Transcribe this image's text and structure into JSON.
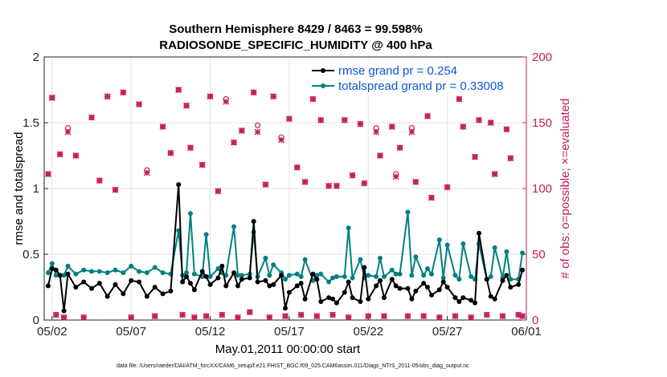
{
  "chart_data": {
    "type": "line",
    "title": "Southern Hemisphere 8429 / 8463 = 99.598%",
    "subtitle": "RADIOSONDE_SPECIFIC_HUMIDITY @ 400 hPa",
    "xlabel": "May.01,2011 00:00:00 start",
    "ylabel": "rmse and totalspread",
    "ylabel_right": "# of obs: o=possible; ×=evaluated",
    "footer": "data file: /Users/raeder/DAI/ATM_forcXX/CAM6_setup/f.e21.FHIST_BGC.f09_025.CAM6assim.011/Diags_NTrS_2011-05/obs_diag_output.nc",
    "xlim": [
      1.5,
      32.0
    ],
    "ylim": [
      0,
      2
    ],
    "ylim_right": [
      0,
      200
    ],
    "x_tick_values": [
      2,
      7,
      12,
      17,
      22,
      27,
      32
    ],
    "x_tick_labels": [
      "05/02",
      "05/07",
      "05/12",
      "05/17",
      "05/22",
      "05/27",
      "06/01"
    ],
    "y_ticks": [
      "0",
      "0.5",
      "1",
      "1.5",
      "2"
    ],
    "y_tick_values": [
      0,
      0.5,
      1,
      1.5,
      2
    ],
    "y_ticks_right": [
      "0",
      "50",
      "100",
      "150",
      "200"
    ],
    "y_tick_values_right": [
      0,
      50,
      100,
      150,
      200
    ],
    "grid": true,
    "legend_position": "top-right",
    "series": [
      {
        "name": "rmse grand pr = 0.254",
        "color": "#000000",
        "x": [
          1.75,
          2.0,
          2.25,
          2.5,
          2.75,
          3.0,
          3.5,
          4.0,
          4.5,
          5.0,
          5.5,
          6.0,
          6.5,
          7.0,
          7.5,
          8.0,
          8.5,
          9.0,
          9.5,
          10.0,
          10.25,
          10.5,
          10.75,
          11.0,
          11.5,
          11.75,
          12.0,
          12.5,
          12.75,
          13.0,
          13.5,
          13.75,
          14.0,
          14.5,
          14.75,
          15.0,
          15.5,
          15.75,
          16.0,
          16.5,
          16.75,
          17.0,
          17.5,
          17.75,
          18.0,
          18.5,
          18.75,
          19.0,
          19.5,
          19.75,
          20.0,
          20.5,
          20.75,
          21.0,
          21.5,
          21.75,
          22.0,
          22.5,
          22.75,
          23.0,
          23.5,
          23.75,
          24.0,
          24.5,
          24.75,
          25.0,
          25.5,
          25.75,
          26.0,
          26.5,
          26.75,
          27.0,
          27.5,
          27.75,
          28.0,
          28.5,
          28.75,
          29.0,
          29.5,
          29.75,
          30.0,
          30.5,
          30.75,
          31.0,
          31.5,
          31.75
        ],
        "values": [
          0.26,
          0.39,
          0.38,
          0.34,
          0.07,
          0.35,
          0.25,
          0.29,
          0.24,
          0.28,
          0.18,
          0.27,
          0.2,
          0.3,
          0.29,
          0.18,
          0.25,
          0.2,
          0.22,
          1.03,
          0.29,
          0.33,
          0.28,
          0.23,
          0.37,
          0.33,
          0.27,
          0.32,
          0.41,
          0.26,
          0.36,
          0.26,
          0.31,
          0.32,
          0.75,
          0.29,
          0.3,
          0.26,
          0.27,
          0.34,
          0.09,
          0.21,
          0.26,
          0.28,
          0.16,
          0.35,
          0.31,
          0.14,
          0.17,
          0.16,
          0.13,
          0.21,
          0.29,
          0.17,
          0.14,
          0.4,
          0.16,
          0.26,
          0.3,
          0.17,
          0.31,
          0.26,
          0.24,
          0.24,
          0.16,
          0.22,
          0.28,
          0.25,
          0.19,
          0.23,
          0.29,
          0.25,
          0.17,
          0.14,
          0.17,
          0.15,
          0.13,
          0.66,
          0.31,
          0.18,
          0.16,
          0.3,
          0.34,
          0.25,
          0.27,
          0.38
        ]
      },
      {
        "name": "totalspread grand pr = 0.33008",
        "color": "#008080",
        "x": [
          1.75,
          2.0,
          2.25,
          2.5,
          2.75,
          3.0,
          3.5,
          4.0,
          4.5,
          5.0,
          5.5,
          6.0,
          6.5,
          7.0,
          7.5,
          8.0,
          8.5,
          9.0,
          9.5,
          10.0,
          10.25,
          10.5,
          10.75,
          11.0,
          11.5,
          11.75,
          12.0,
          12.5,
          12.75,
          13.0,
          13.5,
          13.75,
          14.0,
          14.5,
          14.75,
          15.0,
          15.5,
          15.75,
          16.0,
          16.5,
          16.75,
          17.0,
          17.5,
          17.75,
          18.0,
          18.5,
          18.75,
          19.0,
          19.5,
          19.75,
          20.0,
          20.5,
          20.75,
          21.0,
          21.5,
          21.75,
          22.0,
          22.5,
          22.75,
          23.0,
          23.5,
          23.75,
          24.0,
          24.5,
          24.75,
          25.0,
          25.5,
          25.75,
          26.0,
          26.5,
          26.75,
          27.0,
          27.5,
          27.75,
          28.0,
          28.5,
          28.75,
          29.0,
          29.5,
          29.75,
          30.0,
          30.5,
          30.75,
          31.0,
          31.5,
          31.75
        ],
        "values": [
          0.36,
          0.43,
          0.34,
          0.34,
          0.34,
          0.41,
          0.35,
          0.38,
          0.37,
          0.37,
          0.36,
          0.38,
          0.36,
          0.41,
          0.37,
          0.36,
          0.4,
          0.36,
          0.35,
          0.68,
          0.34,
          0.36,
          0.81,
          0.35,
          0.33,
          0.65,
          0.33,
          0.39,
          0.36,
          0.34,
          0.71,
          0.34,
          0.34,
          0.35,
          0.67,
          0.33,
          0.47,
          0.34,
          0.42,
          0.36,
          0.31,
          0.34,
          0.35,
          0.33,
          0.46,
          0.3,
          0.34,
          0.35,
          0.29,
          0.32,
          0.33,
          0.33,
          0.7,
          0.32,
          0.46,
          0.32,
          0.34,
          0.33,
          0.47,
          0.33,
          0.38,
          0.35,
          0.35,
          0.82,
          0.34,
          0.48,
          0.34,
          0.39,
          0.35,
          0.61,
          0.32,
          0.57,
          0.34,
          0.31,
          0.58,
          0.33,
          0.31,
          0.58,
          0.31,
          0.33,
          0.55,
          0.32,
          0.52,
          0.31,
          0.31,
          0.51
        ]
      },
      {
        "name": "obs possible (o)",
        "color": "#c51b5a",
        "axis": "right",
        "x": [
          1.75,
          2.0,
          2.25,
          2.5,
          2.75,
          3.0,
          3.5,
          4.0,
          4.5,
          5.0,
          5.5,
          6.0,
          6.5,
          7.0,
          7.5,
          8.0,
          8.5,
          9.0,
          9.5,
          10.0,
          10.25,
          10.5,
          10.75,
          11.0,
          11.5,
          11.75,
          12.0,
          12.5,
          12.75,
          13.0,
          13.5,
          13.75,
          14.0,
          14.5,
          14.75,
          15.0,
          15.5,
          15.75,
          16.0,
          16.5,
          16.75,
          17.0,
          17.5,
          17.75,
          18.0,
          18.5,
          18.75,
          19.0,
          19.5,
          19.75,
          20.0,
          20.5,
          20.75,
          21.0,
          21.5,
          21.75,
          22.0,
          22.5,
          22.75,
          23.0,
          23.5,
          23.75,
          24.0,
          24.5,
          24.75,
          25.0,
          25.5,
          25.75,
          26.0,
          26.5,
          26.75,
          27.0,
          27.5,
          27.75,
          28.0,
          28.5,
          28.75,
          29.0,
          29.5,
          29.75,
          30.0,
          30.5,
          30.75,
          31.0,
          31.5,
          31.75
        ],
        "values": [
          111,
          169,
          4,
          126,
          2,
          146,
          125,
          2,
          154,
          106,
          170,
          99,
          173,
          2,
          164,
          114,
          3,
          147,
          127,
          175,
          4,
          163,
          131,
          2,
          118,
          3,
          170,
          98,
          4,
          168,
          135,
          2,
          144,
          6,
          173,
          148,
          103,
          2,
          170,
          139,
          3,
          153,
          116,
          4,
          105,
          168,
          3,
          152,
          102,
          4,
          102,
          152,
          2,
          110,
          149,
          104,
          3,
          146,
          125,
          3,
          147,
          111,
          131,
          3,
          146,
          105,
          3,
          155,
          93,
          2,
          176,
          101,
          3,
          168,
          147,
          2,
          124,
          152,
          4,
          150,
          111,
          3,
          145,
          123,
          4,
          3
        ]
      },
      {
        "name": "obs evaluated (×)",
        "color": "#c51b5a",
        "axis": "right",
        "x": [
          1.75,
          2.0,
          2.25,
          2.5,
          2.75,
          3.0,
          3.5,
          4.0,
          4.5,
          5.0,
          5.5,
          6.0,
          6.5,
          7.0,
          7.5,
          8.0,
          8.5,
          9.0,
          9.5,
          10.0,
          10.25,
          10.5,
          10.75,
          11.0,
          11.5,
          11.75,
          12.0,
          12.5,
          12.75,
          13.0,
          13.5,
          13.75,
          14.0,
          14.5,
          14.75,
          15.0,
          15.5,
          15.75,
          16.0,
          16.5,
          16.75,
          17.0,
          17.5,
          17.75,
          18.0,
          18.5,
          18.75,
          19.0,
          19.5,
          19.75,
          20.0,
          20.5,
          20.75,
          21.0,
          21.5,
          21.75,
          22.0,
          22.5,
          22.75,
          23.0,
          23.5,
          23.75,
          24.0,
          24.5,
          24.75,
          25.0,
          25.5,
          25.75,
          26.0,
          26.5,
          26.75,
          27.0,
          27.5,
          27.75,
          28.0,
          28.5,
          28.75,
          29.0,
          29.5,
          29.75,
          30.0,
          30.5,
          30.75,
          31.0,
          31.5,
          31.75
        ],
        "values": [
          111,
          169,
          4,
          126,
          2,
          143,
          125,
          2,
          154,
          106,
          170,
          99,
          173,
          2,
          164,
          112,
          3,
          147,
          127,
          175,
          4,
          163,
          131,
          2,
          118,
          3,
          170,
          98,
          4,
          166,
          135,
          2,
          144,
          6,
          173,
          143,
          103,
          2,
          170,
          137,
          3,
          153,
          116,
          4,
          105,
          168,
          3,
          152,
          102,
          4,
          102,
          152,
          2,
          110,
          149,
          104,
          3,
          143,
          125,
          3,
          147,
          109,
          131,
          3,
          143,
          105,
          3,
          155,
          93,
          2,
          176,
          101,
          3,
          168,
          147,
          2,
          124,
          152,
          4,
          150,
          111,
          3,
          145,
          123,
          4,
          3
        ]
      }
    ]
  }
}
